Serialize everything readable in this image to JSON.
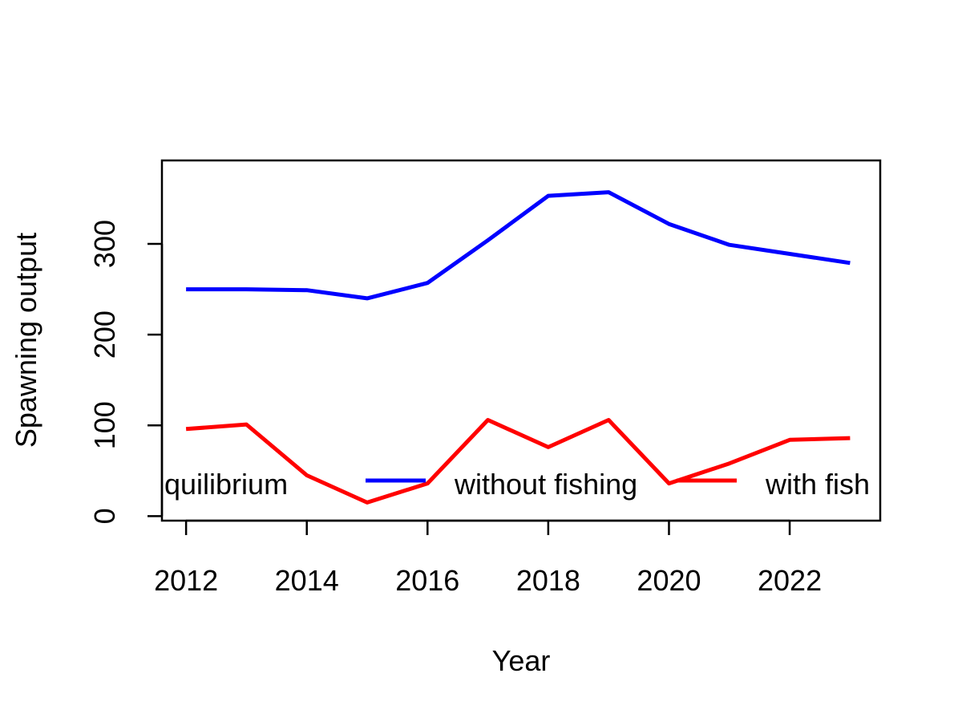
{
  "chart_data": {
    "type": "line",
    "xlabel": "Year",
    "ylabel": "Spawning output",
    "xlim": [
      2011.6,
      2023.5
    ],
    "ylim": [
      -5,
      392
    ],
    "x_ticks": [
      2012,
      2014,
      2016,
      2018,
      2020,
      2022
    ],
    "y_ticks": [
      0,
      100,
      200,
      300
    ],
    "x": [
      2012,
      2013,
      2014,
      2015,
      2016,
      2017,
      2018,
      2019,
      2020,
      2021,
      2022,
      2023
    ],
    "series": [
      {
        "name": "without fishing",
        "color": "#0000ff",
        "values": [
          250,
          250,
          249,
          240,
          257,
          304,
          353,
          357,
          322,
          299,
          289,
          279
        ]
      },
      {
        "name": "with fishing",
        "color": "#ff0000",
        "values": [
          96,
          101,
          45,
          15,
          36,
          106,
          76,
          106,
          36,
          58,
          84,
          86
        ]
      }
    ],
    "legend": {
      "placement": "bottom",
      "entries": [
        {
          "label": "quilibrium"
        },
        {
          "label": "without fishing",
          "color": "#0000ff"
        },
        {
          "label": "with fish",
          "color": "#ff0000"
        }
      ]
    },
    "grid": false
  }
}
